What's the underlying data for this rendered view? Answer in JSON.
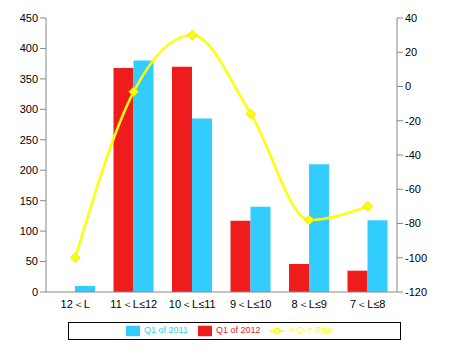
{
  "chart_data": {
    "type": "bar",
    "categories": [
      "12＜L",
      "11＜L≤12",
      "10＜L≤11",
      "9＜L≤10",
      "8＜L≤9",
      "7＜L≤8"
    ],
    "series": [
      {
        "name": "Q1 of 2012",
        "type": "bar",
        "color": "#ee1c1c",
        "values": [
          0,
          368,
          370,
          117,
          46,
          35
        ]
      },
      {
        "name": "Q1 of 2011",
        "type": "bar",
        "color": "#33ccff",
        "values": [
          10,
          380,
          285,
          140,
          210,
          118
        ]
      },
      {
        "name": "Y-O-Y Rise",
        "type": "line",
        "axis": "y2",
        "color": "#ffff00",
        "marker": "diamond",
        "line_style": "solid",
        "values": [
          -100,
          -3,
          30,
          -16,
          -78,
          -70
        ]
      }
    ],
    "ylim": [
      0,
      450
    ],
    "yticks": [
      0,
      50,
      100,
      150,
      200,
      250,
      300,
      350,
      400,
      450
    ],
    "y2lim": [
      -120,
      40
    ],
    "y2ticks": [
      -120,
      -100,
      -80,
      -60,
      -40,
      -20,
      0,
      20,
      40
    ],
    "grid": false,
    "legend": "bottom"
  }
}
